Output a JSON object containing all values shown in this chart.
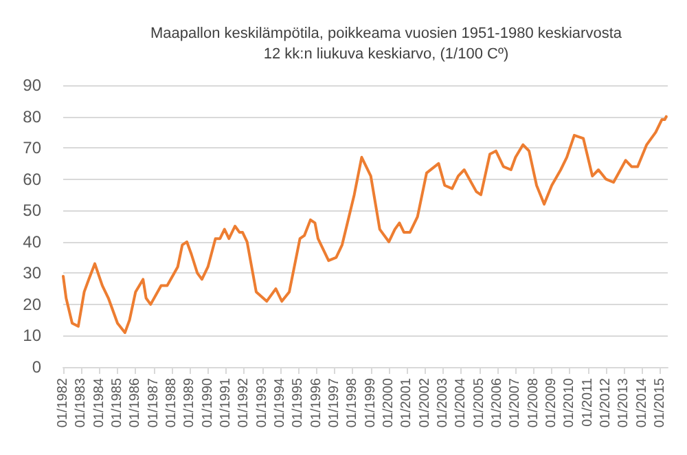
{
  "chart_data": {
    "type": "line",
    "title": "Maapallon keskilämpötila, poikkeama vuosien 1951-1980 keskiarvosta",
    "subtitle": "12 kk:n liukuva keskiarvo, (1/100 Cº)",
    "x": [
      "1982-01",
      "1982-03",
      "1982-07",
      "1982-11",
      "1983-03",
      "1983-06",
      "1983-10",
      "1984-03",
      "1984-07",
      "1985-01",
      "1985-06",
      "1985-09",
      "1986-01",
      "1986-06",
      "1986-08",
      "1986-11",
      "1987-06",
      "1987-10",
      "1988-05",
      "1988-08",
      "1988-11",
      "1989-02",
      "1989-06",
      "1989-09",
      "1990-01",
      "1990-06",
      "1990-09",
      "1990-12",
      "1991-03",
      "1991-07",
      "1991-10",
      "1991-12",
      "1992-03",
      "1992-09",
      "1993-04",
      "1993-10",
      "1994-02",
      "1994-07",
      "1995-02",
      "1995-05",
      "1995-09",
      "1995-12",
      "1996-02",
      "1996-09",
      "1997-02",
      "1997-06",
      "1997-09",
      "1998-02",
      "1998-07",
      "1999-01",
      "1999-07",
      "2000-01",
      "2000-05",
      "2000-08",
      "2000-11",
      "2001-03",
      "2001-08",
      "2002-02",
      "2002-10",
      "2003-02",
      "2003-07",
      "2003-11",
      "2004-03",
      "2004-11",
      "2005-02",
      "2005-08",
      "2005-12",
      "2006-05",
      "2006-10",
      "2007-01",
      "2007-06",
      "2007-10",
      "2008-03",
      "2008-08",
      "2009-01",
      "2009-07",
      "2009-11",
      "2010-04",
      "2010-10",
      "2011-04",
      "2011-08",
      "2012-01",
      "2012-06",
      "2013-02",
      "2013-06",
      "2013-10",
      "2014-04",
      "2014-10",
      "2015-02",
      "2015-04",
      "2015-05"
    ],
    "series": [
      {
        "color": "#ed7d31",
        "values": [
          29,
          22,
          14,
          13,
          24,
          28,
          33,
          26,
          22,
          14,
          11,
          15,
          24,
          28,
          22,
          20,
          26,
          26,
          32,
          39,
          40,
          36,
          30,
          28,
          32,
          41,
          41,
          44,
          41,
          45,
          43,
          43,
          40,
          24,
          21,
          25,
          21,
          24,
          41,
          42,
          47,
          46,
          41,
          34,
          35,
          39,
          45,
          55,
          67,
          61,
          44,
          40,
          44,
          46,
          43,
          43,
          48,
          62,
          65,
          58,
          57,
          61,
          63,
          56,
          55,
          68,
          69,
          64,
          63,
          67,
          71,
          69,
          58,
          52,
          58,
          63,
          67,
          74,
          73,
          61,
          63,
          60,
          59,
          66,
          64,
          64,
          71,
          75,
          79,
          79,
          80
        ]
      }
    ],
    "xlim": [
      "1982-01",
      "2015-06"
    ],
    "xticks": [
      {
        "value": "1982-01",
        "label": "01/1982"
      },
      {
        "value": "1983-01",
        "label": "01/1983"
      },
      {
        "value": "1984-01",
        "label": "01/1984"
      },
      {
        "value": "1985-01",
        "label": "01/1985"
      },
      {
        "value": "1986-01",
        "label": "01/1986"
      },
      {
        "value": "1987-01",
        "label": "01/1987"
      },
      {
        "value": "1988-01",
        "label": "01/1988"
      },
      {
        "value": "1989-01",
        "label": "01/1989"
      },
      {
        "value": "1990-01",
        "label": "01/1990"
      },
      {
        "value": "1991-01",
        "label": "01/1991"
      },
      {
        "value": "1992-01",
        "label": "01/1992"
      },
      {
        "value": "1993-01",
        "label": "01/1993"
      },
      {
        "value": "1994-01",
        "label": "01/1994"
      },
      {
        "value": "1995-01",
        "label": "01/1995"
      },
      {
        "value": "1996-01",
        "label": "01/1996"
      },
      {
        "value": "1997-01",
        "label": "01/1997"
      },
      {
        "value": "1998-01",
        "label": "01/1998"
      },
      {
        "value": "1999-01",
        "label": "01/1999"
      },
      {
        "value": "2000-01",
        "label": "01/2000"
      },
      {
        "value": "2001-01",
        "label": "01/2001"
      },
      {
        "value": "2002-01",
        "label": "01/2002"
      },
      {
        "value": "2003-01",
        "label": "01/2003"
      },
      {
        "value": "2004-01",
        "label": "01/2004"
      },
      {
        "value": "2005-01",
        "label": "01/2005"
      },
      {
        "value": "2006-01",
        "label": "01/2006"
      },
      {
        "value": "2007-01",
        "label": "01/2007"
      },
      {
        "value": "2008-01",
        "label": "01/2008"
      },
      {
        "value": "2009-01",
        "label": "01/2009"
      },
      {
        "value": "2010-01",
        "label": "01/2010"
      },
      {
        "value": "2011-01",
        "label": "01/2011"
      },
      {
        "value": "2012-01",
        "label": "01/2012"
      },
      {
        "value": "2013-01",
        "label": "01/2013"
      },
      {
        "value": "2014-01",
        "label": "01/2014"
      },
      {
        "value": "2015-01",
        "label": "01/2015"
      }
    ],
    "ylim": [
      0,
      90
    ],
    "yticks": [
      0,
      10,
      20,
      30,
      40,
      50,
      60,
      70,
      80,
      90
    ],
    "grid": "y",
    "marker": "none",
    "line_style": "solid"
  }
}
